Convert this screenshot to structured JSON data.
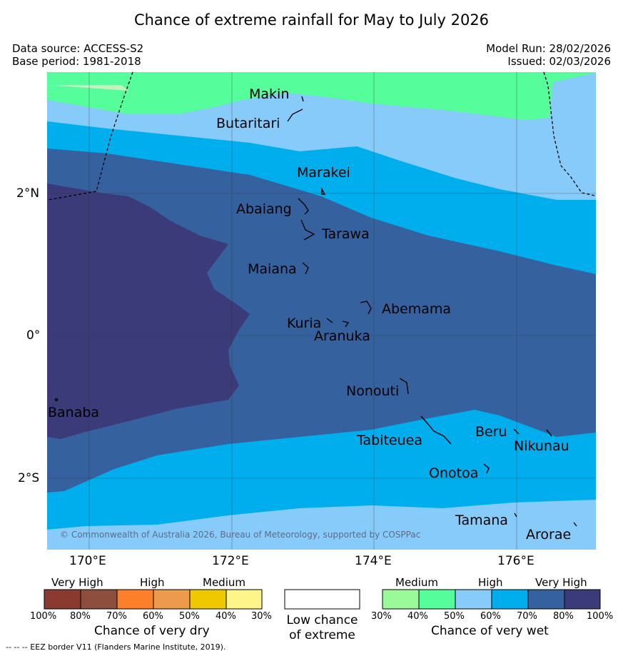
{
  "title": "Chance of extreme rainfall for May to July 2026",
  "header": {
    "data_source": "Data source: ACCESS-S2",
    "base_period": "Base period: 1981-2018",
    "model_run": "Model Run: 28/02/2026",
    "issued": "Issued: 02/03/2026"
  },
  "map": {
    "lon_range": [
      169.4,
      177.1
    ],
    "lat_range": [
      -3.0,
      3.7
    ],
    "longitude_labels": [
      "170°E",
      "172°E",
      "174°E",
      "176°E"
    ],
    "latitude_labels": [
      "2°N",
      "0°",
      "2°S"
    ],
    "places": [
      "Makin",
      "Butaritari",
      "Marakei",
      "Abaiang",
      "Tarawa",
      "Maiana",
      "Abemama",
      "Kuria",
      "Aranuka",
      "Nonouti",
      "Banaba",
      "Tabiteuea",
      "Beru",
      "Nikunau",
      "Onotoa",
      "Tamana",
      "Arorae"
    ],
    "copyright": "© Commonwealth of Australia 2026, Bureau of Meteorology, supported by COSPPac"
  },
  "legend": {
    "dry": {
      "headers": [
        "Very High",
        "High",
        "Medium"
      ],
      "ticks": [
        "100%",
        "80%",
        "70%",
        "60%",
        "50%",
        "40%",
        "30%"
      ],
      "colors": [
        "#8b3a2f",
        "#8d4e3d",
        "#fd7f2a",
        "#ed9a4c",
        "#f0c800",
        "#fdf58a"
      ],
      "caption": "Chance of very dry"
    },
    "neutral": {
      "line1": "Low chance",
      "line2": "of extreme"
    },
    "wet": {
      "headers": [
        "Medium",
        "High",
        "Very High"
      ],
      "ticks": [
        "30%",
        "40%",
        "50%",
        "60%",
        "70%",
        "80%",
        "100%"
      ],
      "colors": [
        "#9afa9a",
        "#55fd9b",
        "#87cbfa",
        "#00aeee",
        "#35619f",
        "#3c3b7a"
      ],
      "caption": "Chance of very wet"
    }
  },
  "footer": "--  --  -- EEZ border V11 (Flanders Marine Institute, 2019)."
}
